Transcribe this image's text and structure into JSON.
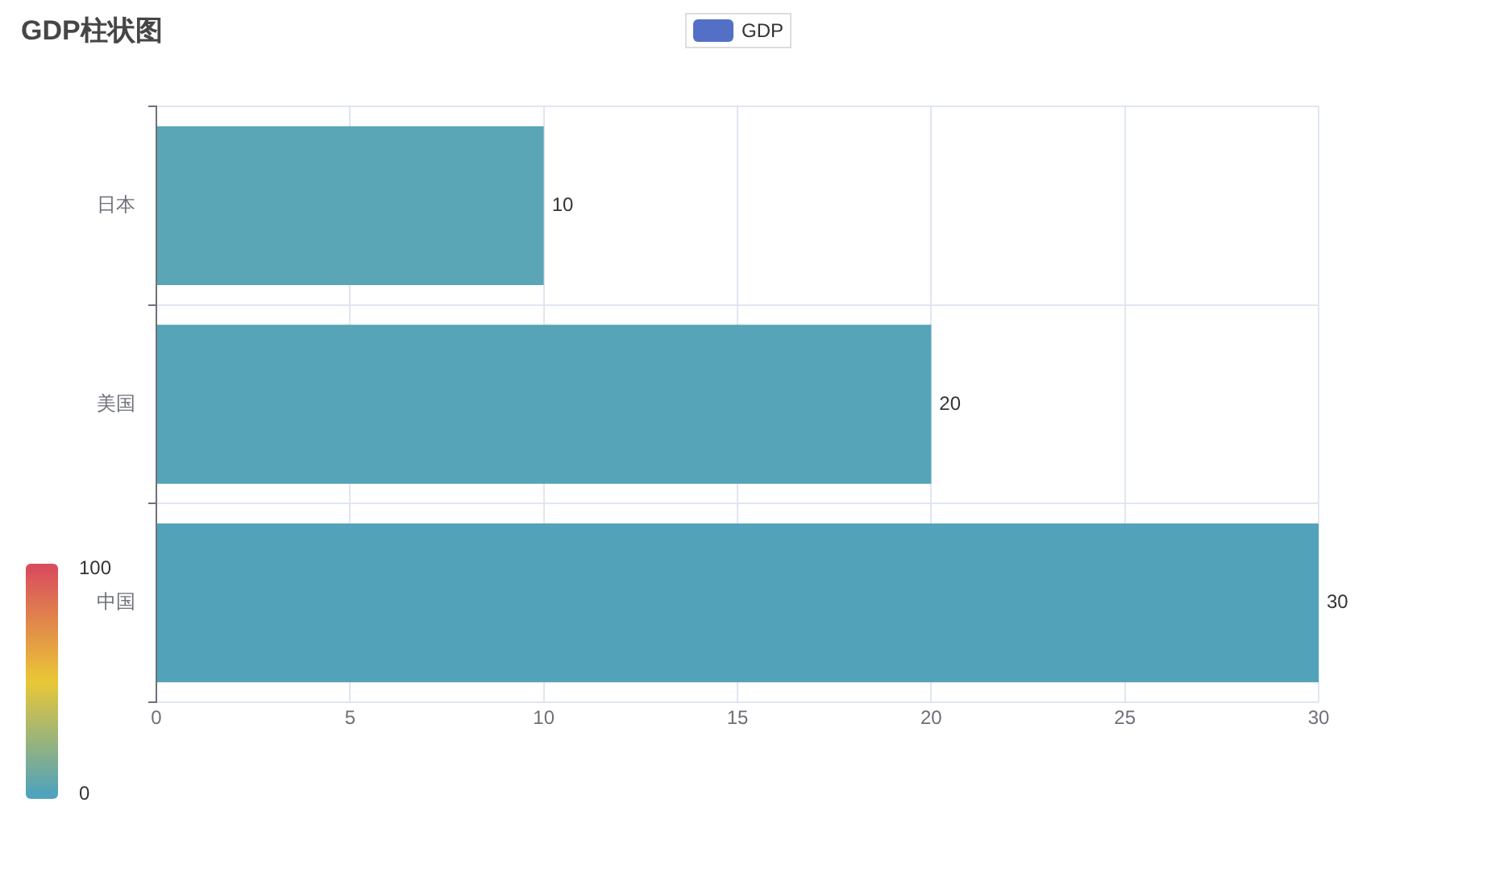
{
  "chart_data": {
    "type": "bar",
    "orientation": "horizontal",
    "title": "GDP柱状图",
    "categories": [
      "日本",
      "美国",
      "中国"
    ],
    "series": [
      {
        "name": "GDP",
        "color": "#5470c6",
        "colors": [
          "#5aa5b6",
          "#55a4b8",
          "#52a3b9"
        ],
        "values": [
          10,
          20,
          30
        ]
      }
    ],
    "xlim": [
      0,
      30
    ],
    "xticks": [
      0,
      5,
      10,
      15,
      20,
      25,
      30
    ],
    "clim": [
      0,
      100
    ],
    "cticks": [
      0,
      100
    ],
    "data_labels": true,
    "grid": true,
    "legend": "top"
  }
}
